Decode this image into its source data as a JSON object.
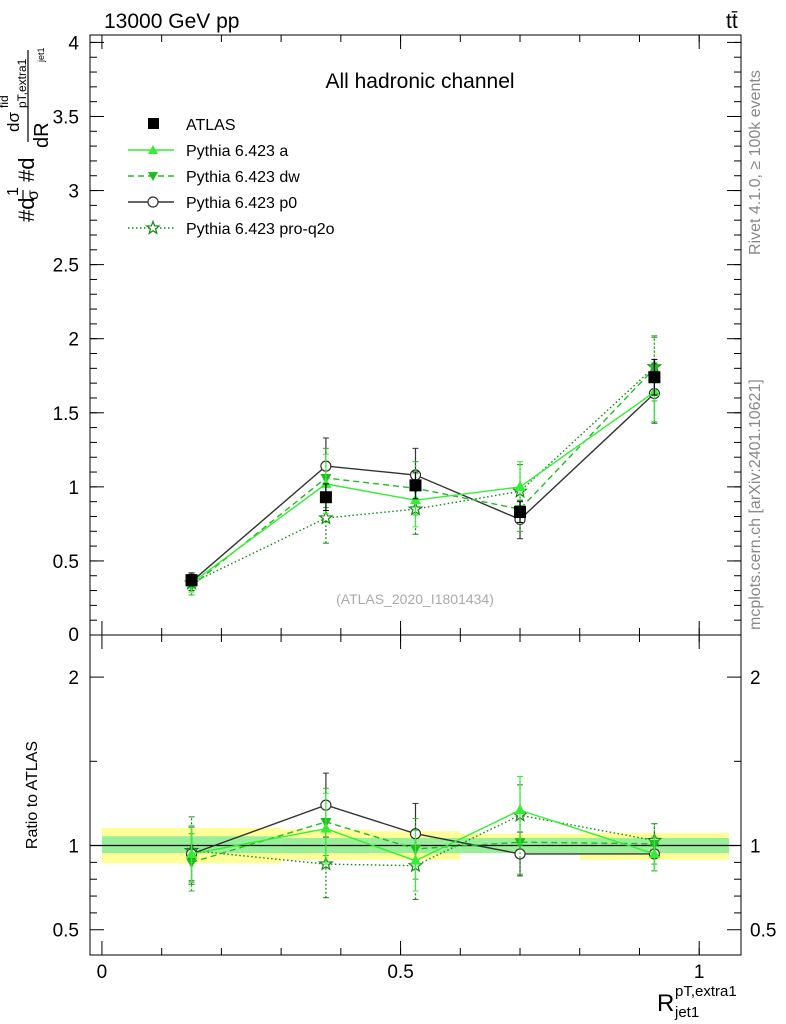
{
  "header": {
    "left": "13000 GeV pp",
    "right": "tt̄"
  },
  "side_labels": {
    "rivet": "Rivet 4.1.0, ≥ 100k events",
    "mcplots": "mcplots.cern.ch [arXiv:2401.10621]"
  },
  "colors": {
    "atlas": "#000000",
    "pythia_a": "#33ee33",
    "pythia_dw": "#22bb22",
    "pythia_p0": "#333333",
    "pythia_proq2o": "#118811",
    "band_inner": "#99ee99",
    "band_outer": "#ffff99"
  },
  "chart_data": [
    {
      "type": "line",
      "title": "All hadronic channel",
      "watermark": "(ATLAS_2020_I1801434)",
      "ylabel": "#d1/σ#dd σ^fid / dR_jet1^{pT,extra1}",
      "ylabel_parts": {
        "main": "#d",
        "sup": "1",
        "sigma": "σ",
        "mid": "#d",
        "num": "dσ",
        "num_sup": "fid",
        "num_sub": "pT,extra1",
        "den": "dR",
        "den_sub": "jet1"
      },
      "xlim": [
        -0.02,
        1.07
      ],
      "ylim": [
        0,
        4.05
      ],
      "yticks": [
        0.5,
        1,
        1.5,
        2,
        2.5,
        3,
        3.5,
        4
      ],
      "ytick_labels": [
        "0.5",
        "1",
        "1.5",
        "2",
        "2.5",
        "3",
        "3.5",
        "4"
      ],
      "y_zero_label": "0",
      "x": [
        0.15,
        0.375,
        0.525,
        0.7,
        0.925
      ],
      "series": [
        {
          "name": "ATLAS",
          "marker": "square",
          "values": [
            0.37,
            0.93,
            1.01,
            0.83,
            1.74
          ],
          "errors": [
            0.04,
            0.09,
            0.09,
            0.07,
            0.12
          ]
        },
        {
          "name": "Pythia 6.423 a",
          "marker": "triangle-up",
          "line": "solid",
          "values": [
            0.35,
            1.02,
            0.91,
            1.0,
            1.64
          ],
          "errors": [
            0.06,
            0.2,
            0.18,
            0.17,
            0.2
          ]
        },
        {
          "name": "Pythia 6.423 dw",
          "marker": "triangle-down",
          "line": "dashed",
          "values": [
            0.33,
            1.06,
            0.99,
            0.85,
            1.8
          ],
          "errors": [
            0.06,
            0.2,
            0.18,
            0.15,
            0.22
          ]
        },
        {
          "name": "Pythia 6.423 p0",
          "marker": "circle-open",
          "line": "solid",
          "values": [
            0.36,
            1.14,
            1.08,
            0.78,
            1.63
          ],
          "errors": [
            0.06,
            0.19,
            0.18,
            0.13,
            0.2
          ]
        },
        {
          "name": "Pythia 6.423 pro-q2o",
          "marker": "star-open",
          "line": "dotted",
          "values": [
            0.35,
            0.79,
            0.85,
            0.97,
            1.81
          ],
          "errors": [
            0.06,
            0.17,
            0.17,
            0.18,
            0.2
          ]
        }
      ]
    },
    {
      "type": "line",
      "ylabel": "Ratio to ATLAS",
      "xlabel": "R_jet1^{pT,extra1}",
      "xlabel_parts": {
        "main": "R",
        "sub": "jet1",
        "sup": "pT,extra1"
      },
      "xlim": [
        -0.02,
        1.07
      ],
      "ylim": [
        0.35,
        2.25
      ],
      "xticks": [
        0,
        0.5,
        1
      ],
      "xtick_labels": [
        "0",
        "0.5",
        "1"
      ],
      "yticks": [
        0.5,
        1,
        2
      ],
      "ytick_labels": [
        "0.5",
        "1",
        "2"
      ],
      "bins": [
        [
          0.0,
          0.3
        ],
        [
          0.3,
          0.45
        ],
        [
          0.45,
          0.6
        ],
        [
          0.6,
          0.8
        ],
        [
          0.8,
          1.05
        ]
      ],
      "band_inner": [
        [
          0.955,
          1.055
        ],
        [
          0.955,
          1.045
        ],
        [
          0.955,
          1.045
        ],
        [
          0.955,
          1.045
        ],
        [
          0.955,
          1.045
        ]
      ],
      "band_outer": [
        [
          0.895,
          1.105
        ],
        [
          0.915,
          1.095
        ],
        [
          0.915,
          1.085
        ],
        [
          0.955,
          1.07
        ],
        [
          0.915,
          1.075
        ]
      ],
      "x": [
        0.15,
        0.375,
        0.525,
        0.7,
        0.925
      ],
      "series": [
        {
          "name": "Pythia 6.423 a",
          "values": [
            0.95,
            1.1,
            0.91,
            1.21,
            0.95
          ],
          "errors": [
            0.17,
            0.21,
            0.18,
            0.2,
            0.1
          ]
        },
        {
          "name": "Pythia 6.423 dw",
          "values": [
            0.9,
            1.14,
            0.98,
            1.02,
            1.01
          ],
          "errors": [
            0.17,
            0.2,
            0.18,
            0.19,
            0.12
          ]
        },
        {
          "name": "Pythia 6.423 p0",
          "values": [
            0.95,
            1.24,
            1.07,
            0.95,
            0.95
          ],
          "errors": [
            0.16,
            0.19,
            0.18,
            0.13,
            0.1
          ]
        },
        {
          "name": "Pythia 6.423 pro-q2o",
          "values": [
            0.97,
            0.89,
            0.88,
            1.18,
            1.03
          ],
          "errors": [
            0.2,
            0.2,
            0.2,
            0.18,
            0.1
          ]
        }
      ]
    }
  ]
}
